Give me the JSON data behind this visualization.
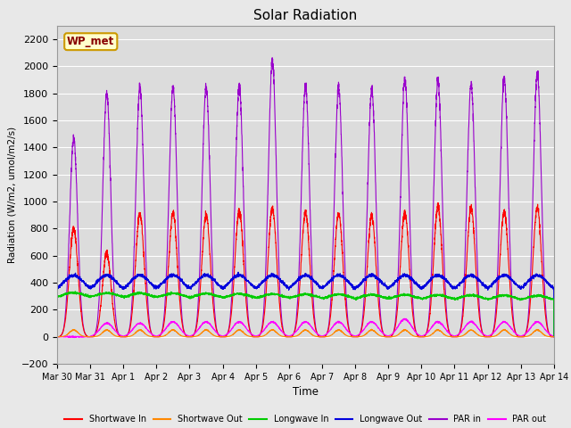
{
  "title": "Solar Radiation",
  "ylabel": "Radiation (W/m2, umol/m2/s)",
  "xlabel": "Time",
  "station_label": "WP_met",
  "ylim": [
    -200,
    2300
  ],
  "yticks": [
    -200,
    0,
    200,
    400,
    600,
    800,
    1000,
    1200,
    1400,
    1600,
    1800,
    2000,
    2200
  ],
  "xtick_labels": [
    "Mar 30",
    "Mar 31",
    "Apr 1",
    "Apr 2",
    "Apr 3",
    "Apr 4",
    "Apr 5",
    "Apr 6",
    "Apr 7",
    "Apr 8",
    "Apr 9",
    "Apr 10",
    "Apr 11",
    "Apr 12",
    "Apr 13",
    "Apr 14"
  ],
  "num_days": 15,
  "background_color": "#e8e8e8",
  "plot_bg_color": "#dcdcdc",
  "grid_color": "#ffffff",
  "series": {
    "shortwave_in": {
      "color": "#ff0000",
      "label": "Shortwave In"
    },
    "shortwave_out": {
      "color": "#ff8800",
      "label": "Shortwave Out"
    },
    "longwave_in": {
      "color": "#00cc00",
      "label": "Longwave In"
    },
    "longwave_out": {
      "color": "#0000dd",
      "label": "Longwave Out"
    },
    "par_in": {
      "color": "#9900cc",
      "label": "PAR in"
    },
    "par_out": {
      "color": "#ff00ff",
      "label": "PAR out"
    }
  },
  "sw_in_peaks": [
    800,
    620,
    910,
    910,
    900,
    935,
    950,
    920,
    910,
    890,
    920,
    960,
    950,
    930,
    955
  ],
  "par_in_peaks": [
    1460,
    1800,
    1840,
    1850,
    1850,
    1855,
    2040,
    1860,
    1840,
    1830,
    1905,
    1895,
    1865,
    1915,
    1945
  ],
  "par_out_peaks": [
    0,
    100,
    100,
    110,
    110,
    110,
    110,
    110,
    110,
    110,
    130,
    110,
    110,
    110,
    110
  ]
}
